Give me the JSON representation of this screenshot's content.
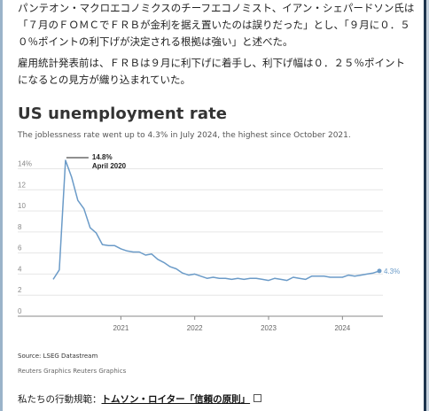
{
  "article": {
    "paragraph1": "パンテオン・マクロエコノミクスのチーフエコノミスト、イアン・シェパードソン氏は「７月のＦＯＭＣでＦＲＢが金利を据え置いたのは誤りだった」とし、「９月に０．５０％ポイントの利下げが決定される根拠は強い」と述べた。",
    "paragraph2": "雇用統計発表前は、ＦＲＢは９月に利下げに着手し、利下げ幅は０．２５％ポイントになるとの見方が織り込まれていた。"
  },
  "chart_data": {
    "type": "line",
    "title": "US unemployment rate",
    "subtitle": "The joblessness rate went up to 4.3% in July 2024, the highest since October 2021.",
    "y_ticks": [
      "0",
      "2",
      "4",
      "6",
      "8",
      "10",
      "12",
      "14%"
    ],
    "x_ticks": [
      "2021",
      "2022",
      "2023",
      "2024"
    ],
    "ylim": [
      0,
      14.8
    ],
    "annotation": {
      "value": "14.8%",
      "label": "April 2020"
    },
    "end_label": "4.3%",
    "line_color": "#6b9bc8",
    "series": [
      {
        "x": [
          "2020-02",
          "2020-03",
          "2020-04",
          "2020-05",
          "2020-06",
          "2020-07",
          "2020-08",
          "2020-09",
          "2020-10",
          "2020-11",
          "2020-12",
          "2021-01",
          "2021-02",
          "2021-03",
          "2021-04",
          "2021-05",
          "2021-06",
          "2021-07",
          "2021-08",
          "2021-09",
          "2021-10",
          "2021-11",
          "2021-12",
          "2022-01",
          "2022-02",
          "2022-03",
          "2022-04",
          "2022-05",
          "2022-06",
          "2022-07",
          "2022-08",
          "2022-09",
          "2022-10",
          "2022-11",
          "2022-12",
          "2023-01",
          "2023-02",
          "2023-03",
          "2023-04",
          "2023-05",
          "2023-06",
          "2023-07",
          "2023-08",
          "2023-09",
          "2023-10",
          "2023-11",
          "2023-12",
          "2024-01",
          "2024-02",
          "2024-03",
          "2024-04",
          "2024-05",
          "2024-06",
          "2024-07"
        ],
        "values": [
          3.5,
          4.4,
          14.8,
          13.2,
          11.0,
          10.2,
          8.4,
          7.9,
          6.8,
          6.7,
          6.7,
          6.4,
          6.2,
          6.1,
          6.1,
          5.8,
          5.9,
          5.4,
          5.1,
          4.7,
          4.5,
          4.1,
          3.9,
          4.0,
          3.8,
          3.6,
          3.7,
          3.6,
          3.6,
          3.5,
          3.6,
          3.5,
          3.6,
          3.6,
          3.5,
          3.4,
          3.6,
          3.5,
          3.4,
          3.7,
          3.6,
          3.5,
          3.8,
          3.8,
          3.8,
          3.7,
          3.7,
          3.7,
          3.9,
          3.8,
          3.9,
          4.0,
          4.1,
          4.3
        ]
      }
    ]
  },
  "source": "Source: LSEG Datastream",
  "credit": "Reuters Graphics Reuters Graphics",
  "footer": {
    "prefix": "私たちの行動規範：",
    "link": "トムソン・ロイター「信頼の原則」"
  }
}
